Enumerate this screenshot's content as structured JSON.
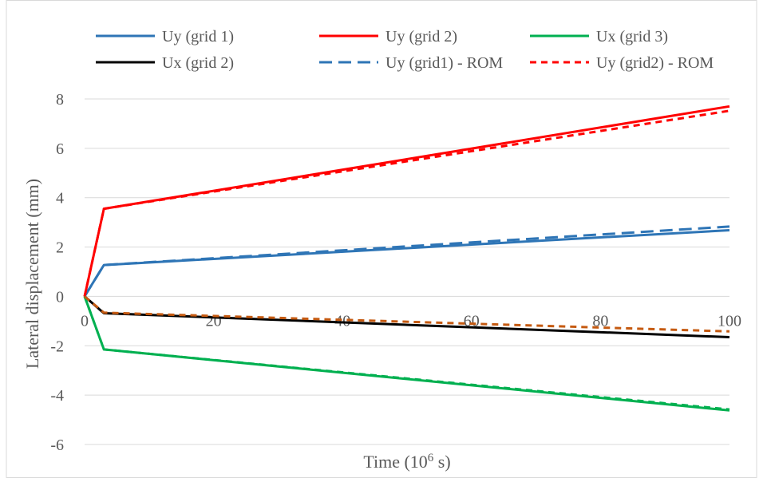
{
  "chart_data": {
    "type": "line",
    "xlabel": "Time (10",
    "xlabel_sup": "6",
    "xlabel_tail": " s)",
    "ylabel": "Lateral displacement (mm)",
    "xlim": [
      0,
      100
    ],
    "ylim": [
      -6,
      8
    ],
    "x_ticks": [
      0,
      20,
      40,
      60,
      80,
      100
    ],
    "y_ticks": [
      -6,
      -4,
      -2,
      0,
      2,
      4,
      6,
      8
    ],
    "grid": "horizontal",
    "legend_position": "top",
    "legend_order": [
      "Uy (grid 1)",
      "Uy (grid 2)",
      "Ux (grid 3)",
      "Ux (grid 2)",
      "Uy (grid1) - ROM",
      "Uy (grid2) - ROM"
    ],
    "series": [
      {
        "name": "Uy (grid 1)",
        "color": "#2E75B6",
        "style": "solid",
        "in_legend": true,
        "x": [
          0,
          3,
          100
        ],
        "y": [
          0,
          1.27,
          2.68
        ]
      },
      {
        "name": "Uy (grid 2)",
        "color": "#FF0000",
        "style": "solid",
        "in_legend": true,
        "x": [
          0,
          3,
          100
        ],
        "y": [
          0,
          3.55,
          7.7
        ]
      },
      {
        "name": "Ux (grid 3)",
        "color": "#00B050",
        "style": "solid",
        "in_legend": true,
        "x": [
          0,
          3,
          100
        ],
        "y": [
          0,
          -2.15,
          -4.62
        ]
      },
      {
        "name": "Ux (grid 2)",
        "color": "#000000",
        "style": "solid",
        "in_legend": true,
        "x": [
          0,
          3,
          100
        ],
        "y": [
          0,
          -0.68,
          -1.65
        ]
      },
      {
        "name": "Uy (grid1) - ROM",
        "color": "#2E75B6",
        "style": "longdash",
        "in_legend": true,
        "x": [
          0,
          3,
          100
        ],
        "y": [
          0,
          1.27,
          2.83
        ]
      },
      {
        "name": "Uy (grid2) - ROM",
        "color": "#FF0000",
        "style": "shortdash",
        "in_legend": true,
        "x": [
          0,
          3,
          100
        ],
        "y": [
          0,
          3.55,
          7.52
        ]
      },
      {
        "name": "",
        "color": "#00B050",
        "style": "shortdash",
        "in_legend": false,
        "x": [
          0,
          3,
          100
        ],
        "y": [
          0,
          -2.15,
          -4.58
        ]
      },
      {
        "name": "",
        "color": "#C55A11",
        "style": "shortdash",
        "in_legend": false,
        "x": [
          0,
          3,
          100
        ],
        "y": [
          0,
          -0.66,
          -1.42
        ]
      }
    ]
  }
}
